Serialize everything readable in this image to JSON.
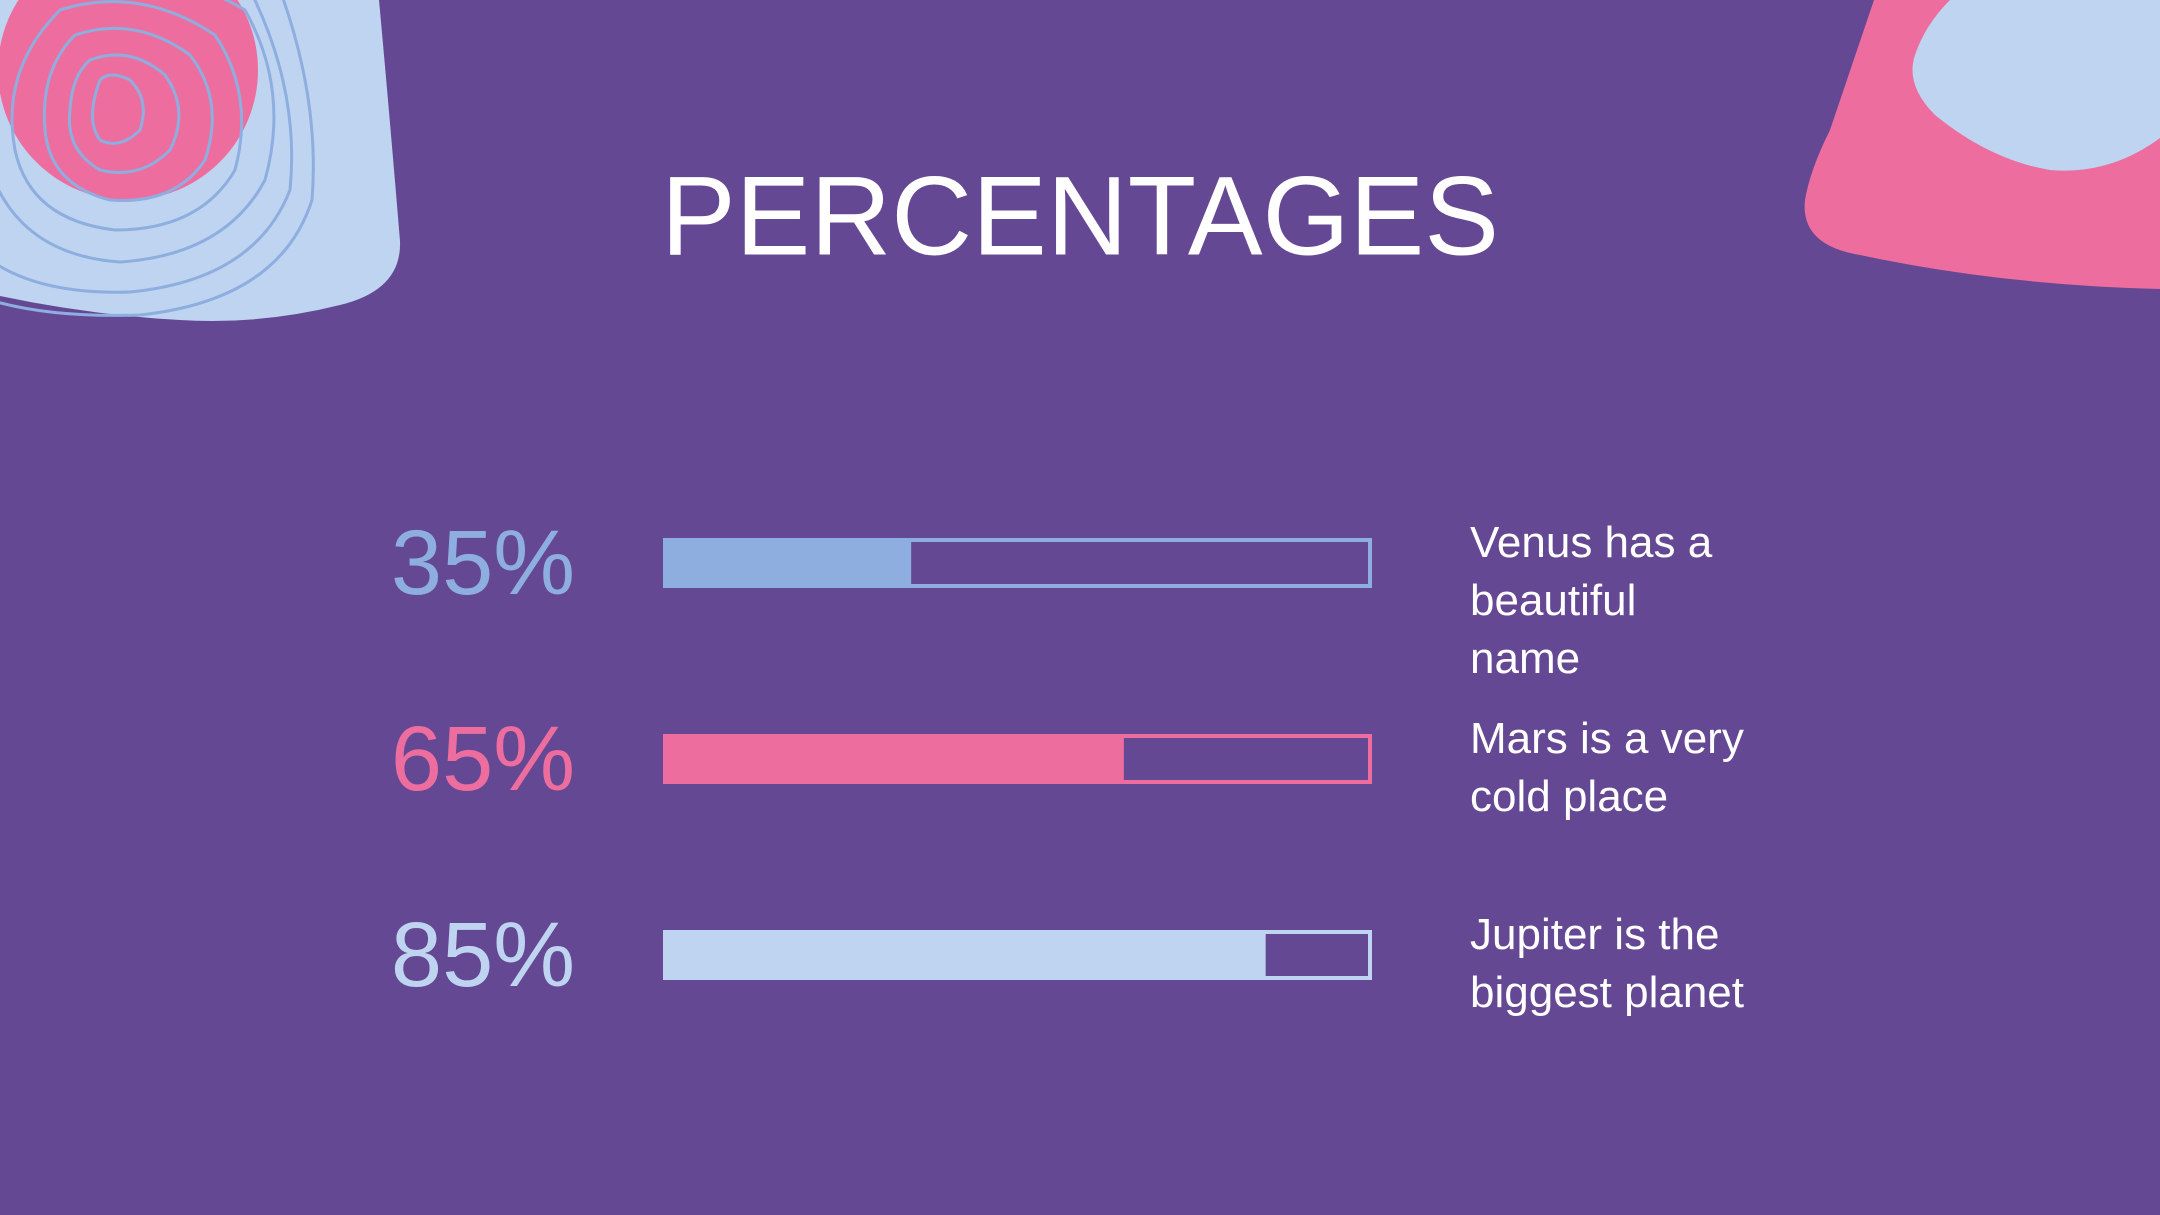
{
  "chart_data": {
    "type": "progress",
    "title": "PERCENTAGES",
    "categories": [
      "Venus has a beautiful name",
      "Mars is a very cold place",
      "Jupiter is the biggest planet"
    ],
    "values": [
      35,
      65,
      85
    ],
    "value_labels": [
      "35%",
      "65%",
      "85%"
    ],
    "colors": [
      "#8eaee0",
      "#ed6e9e",
      "#bed4f0"
    ],
    "xlim": [
      0,
      100
    ]
  }
}
